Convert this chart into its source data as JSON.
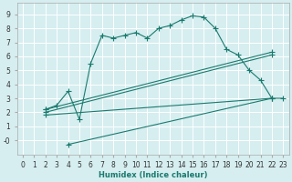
{
  "xlabel": "Humidex (Indice chaleur)",
  "bg_color": "#d6eef0",
  "grid_color": "#ffffff",
  "line_color": "#1a7a6e",
  "xlim": [
    -0.5,
    23.5
  ],
  "ylim": [
    -1.0,
    9.8
  ],
  "xticks": [
    0,
    1,
    2,
    3,
    4,
    5,
    6,
    7,
    8,
    9,
    10,
    11,
    12,
    13,
    14,
    15,
    16,
    17,
    18,
    19,
    20,
    21,
    22,
    23
  ],
  "yticks": [
    0,
    1,
    2,
    3,
    4,
    5,
    6,
    7,
    8,
    9
  ],
  "ytick_labels": [
    "-0",
    "1",
    "2",
    "3",
    "4",
    "5",
    "6",
    "7",
    "8",
    "9"
  ],
  "series1_x": [
    2,
    3,
    4,
    5,
    6,
    7,
    8,
    9,
    10,
    11,
    12,
    13,
    14,
    15,
    16,
    17,
    18,
    19,
    20,
    21,
    22,
    23
  ],
  "series1_y": [
    2.2,
    2.5,
    3.5,
    1.5,
    5.5,
    7.5,
    7.3,
    7.5,
    7.7,
    7.3,
    8.0,
    8.2,
    8.6,
    8.9,
    8.8,
    8.0,
    6.5,
    6.1,
    5.0,
    4.3,
    3.0,
    3.0
  ],
  "series2_x": [
    2,
    22
  ],
  "series2_y": [
    2.2,
    6.3
  ],
  "series3_x": [
    2,
    22
  ],
  "series3_y": [
    2.0,
    6.1
  ],
  "series4_x": [
    4,
    22
  ],
  "series4_y": [
    -0.3,
    3.0
  ],
  "series5_x": [
    2,
    22
  ],
  "series5_y": [
    1.8,
    3.0
  ]
}
